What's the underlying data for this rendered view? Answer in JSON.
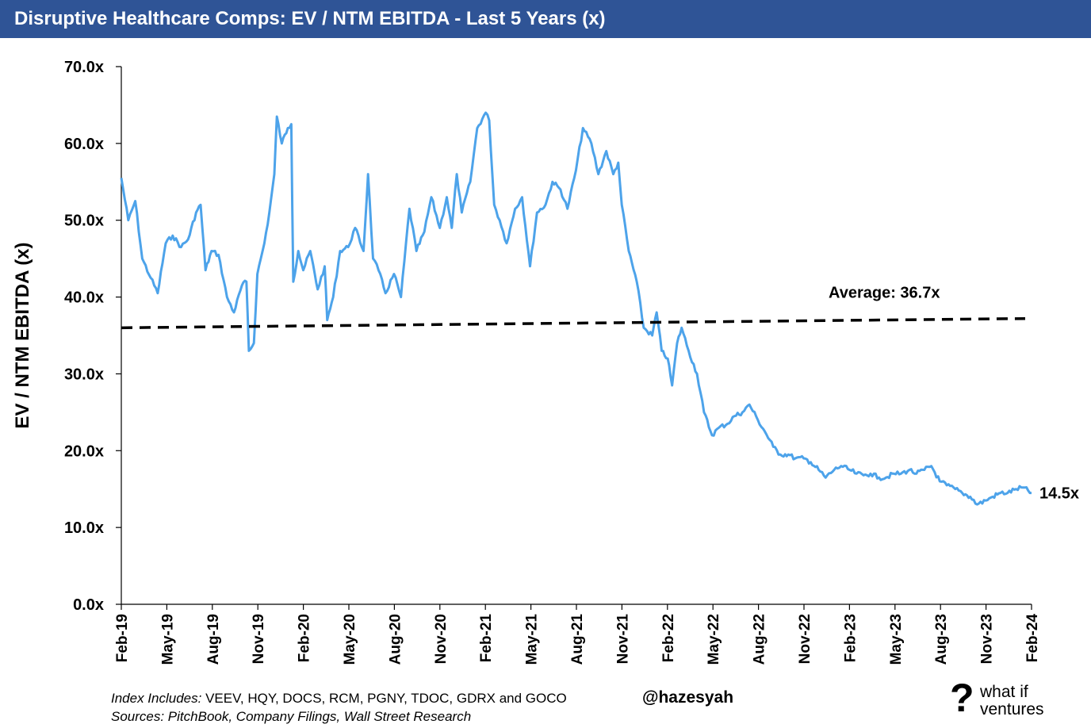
{
  "header": {
    "title": "Disruptive Healthcare Comps: EV / NTM EBITDA - Last 5 Years (x)"
  },
  "footer": {
    "index_prefix": "Index Includes:",
    "index_list": " VEEV, HQY, DOCS, RCM, PGNY, TDOC, GDRX and GOCO",
    "sources": "Sources: PitchBook, Company Filings, Wall Street Research",
    "handle": "@hazesyah",
    "logo_mark": "?",
    "logo_line1": "what if",
    "logo_line2": "ventures"
  },
  "colors": {
    "header_bg": "#2f5496",
    "series_line": "#4da3ea",
    "average_line": "#000000"
  },
  "chart_data": {
    "type": "line",
    "title": "Disruptive Healthcare Comps: EV / NTM EBITDA - Last 5 Years (x)",
    "ylabel": "EV / NTM EBITDA (x)",
    "xlabel": "",
    "ylim": [
      0,
      70
    ],
    "y_ticks": [
      0,
      10,
      20,
      30,
      40,
      50,
      60,
      70
    ],
    "y_tick_labels": [
      "0.0x",
      "10.0x",
      "20.0x",
      "30.0x",
      "40.0x",
      "50.0x",
      "60.0x",
      "70.0x"
    ],
    "x_range": [
      "2019-02-01",
      "2024-02-01"
    ],
    "x_tick_labels": [
      "Feb-19",
      "May-19",
      "Aug-19",
      "Nov-19",
      "Feb-20",
      "May-20",
      "Aug-20",
      "Nov-20",
      "Feb-21",
      "May-21",
      "Aug-21",
      "Nov-21",
      "Feb-22",
      "May-22",
      "Aug-22",
      "Nov-22",
      "Feb-23",
      "May-23",
      "Aug-23",
      "Nov-23",
      "Feb-24"
    ],
    "grid": false,
    "legend": "none",
    "series": [
      {
        "values": [
          [
            "2019-02-01",
            55.5
          ],
          [
            "2019-02-15",
            50.0
          ],
          [
            "2019-03-01",
            52.5
          ],
          [
            "2019-03-15",
            45.0
          ],
          [
            "2019-04-01",
            42.5
          ],
          [
            "2019-04-15",
            40.5
          ],
          [
            "2019-05-01",
            47.0
          ],
          [
            "2019-05-15",
            48.0
          ],
          [
            "2019-06-01",
            46.5
          ],
          [
            "2019-06-15",
            47.5
          ],
          [
            "2019-07-01",
            51.0
          ],
          [
            "2019-07-10",
            52.0
          ],
          [
            "2019-07-20",
            43.5
          ],
          [
            "2019-08-01",
            46.0
          ],
          [
            "2019-08-15",
            45.5
          ],
          [
            "2019-09-01",
            40.0
          ],
          [
            "2019-09-15",
            38.0
          ],
          [
            "2019-10-01",
            41.5
          ],
          [
            "2019-10-10",
            42.0
          ],
          [
            "2019-10-15",
            33.0
          ],
          [
            "2019-10-25",
            34.0
          ],
          [
            "2019-11-01",
            43.0
          ],
          [
            "2019-11-15",
            47.0
          ],
          [
            "2019-11-25",
            51.0
          ],
          [
            "2019-12-05",
            56.0
          ],
          [
            "2019-12-10",
            63.5
          ],
          [
            "2019-12-20",
            60.0
          ],
          [
            "2020-01-01",
            62.0
          ],
          [
            "2020-01-08",
            62.5
          ],
          [
            "2020-01-12",
            42.0
          ],
          [
            "2020-01-22",
            46.0
          ],
          [
            "2020-02-01",
            43.5
          ],
          [
            "2020-02-15",
            46.0
          ],
          [
            "2020-03-01",
            41.0
          ],
          [
            "2020-03-15",
            44.0
          ],
          [
            "2020-03-20",
            37.0
          ],
          [
            "2020-04-01",
            40.0
          ],
          [
            "2020-04-15",
            46.0
          ],
          [
            "2020-05-01",
            46.5
          ],
          [
            "2020-05-15",
            49.0
          ],
          [
            "2020-06-01",
            46.0
          ],
          [
            "2020-06-10",
            56.0
          ],
          [
            "2020-06-20",
            45.0
          ],
          [
            "2020-07-01",
            43.5
          ],
          [
            "2020-07-15",
            40.5
          ],
          [
            "2020-08-01",
            43.0
          ],
          [
            "2020-08-15",
            40.0
          ],
          [
            "2020-09-01",
            51.5
          ],
          [
            "2020-09-15",
            46.0
          ],
          [
            "2020-10-01",
            48.5
          ],
          [
            "2020-10-15",
            53.0
          ],
          [
            "2020-11-01",
            49.0
          ],
          [
            "2020-11-15",
            53.0
          ],
          [
            "2020-11-25",
            49.0
          ],
          [
            "2020-12-05",
            56.0
          ],
          [
            "2020-12-15",
            51.0
          ],
          [
            "2021-01-01",
            55.0
          ],
          [
            "2021-01-15",
            62.0
          ],
          [
            "2021-02-01",
            64.0
          ],
          [
            "2021-02-08",
            63.0
          ],
          [
            "2021-02-18",
            52.0
          ],
          [
            "2021-03-01",
            50.0
          ],
          [
            "2021-03-15",
            47.0
          ],
          [
            "2021-04-01",
            51.5
          ],
          [
            "2021-04-15",
            53.0
          ],
          [
            "2021-05-01",
            44.0
          ],
          [
            "2021-05-15",
            51.0
          ],
          [
            "2021-06-01",
            52.0
          ],
          [
            "2021-06-15",
            55.0
          ],
          [
            "2021-07-01",
            54.0
          ],
          [
            "2021-07-15",
            51.5
          ],
          [
            "2021-08-01",
            56.5
          ],
          [
            "2021-08-15",
            62.0
          ],
          [
            "2021-09-01",
            60.0
          ],
          [
            "2021-09-15",
            56.0
          ],
          [
            "2021-10-01",
            59.0
          ],
          [
            "2021-10-15",
            56.0
          ],
          [
            "2021-10-25",
            57.5
          ],
          [
            "2021-11-01",
            52.0
          ],
          [
            "2021-11-15",
            46.0
          ],
          [
            "2021-12-01",
            42.0
          ],
          [
            "2021-12-15",
            36.0
          ],
          [
            "2022-01-01",
            35.0
          ],
          [
            "2022-01-10",
            38.0
          ],
          [
            "2022-01-20",
            33.0
          ],
          [
            "2022-02-01",
            32.0
          ],
          [
            "2022-02-10",
            28.5
          ],
          [
            "2022-02-20",
            34.0
          ],
          [
            "2022-03-01",
            36.0
          ],
          [
            "2022-03-15",
            33.0
          ],
          [
            "2022-04-01",
            30.0
          ],
          [
            "2022-04-15",
            25.0
          ],
          [
            "2022-05-01",
            22.0
          ],
          [
            "2022-05-15",
            23.0
          ],
          [
            "2022-06-01",
            23.5
          ],
          [
            "2022-06-15",
            24.5
          ],
          [
            "2022-07-01",
            25.0
          ],
          [
            "2022-07-15",
            26.0
          ],
          [
            "2022-08-01",
            24.0
          ],
          [
            "2022-08-15",
            22.5
          ],
          [
            "2022-09-01",
            20.5
          ],
          [
            "2022-09-15",
            19.5
          ],
          [
            "2022-10-01",
            19.5
          ],
          [
            "2022-10-15",
            19.0
          ],
          [
            "2022-11-01",
            19.0
          ],
          [
            "2022-11-15",
            18.5
          ],
          [
            "2022-12-01",
            17.5
          ],
          [
            "2022-12-15",
            16.5
          ],
          [
            "2023-01-01",
            17.5
          ],
          [
            "2023-01-15",
            18.0
          ],
          [
            "2023-02-01",
            17.5
          ],
          [
            "2023-02-15",
            17.0
          ],
          [
            "2023-03-01",
            16.8
          ],
          [
            "2023-03-15",
            17.0
          ],
          [
            "2023-04-01",
            16.5
          ],
          [
            "2023-04-15",
            16.5
          ],
          [
            "2023-05-01",
            17.0
          ],
          [
            "2023-05-15",
            17.0
          ],
          [
            "2023-06-01",
            17.5
          ],
          [
            "2023-06-15",
            17.0
          ],
          [
            "2023-07-01",
            17.5
          ],
          [
            "2023-07-15",
            18.0
          ],
          [
            "2023-08-01",
            16.0
          ],
          [
            "2023-08-15",
            15.5
          ],
          [
            "2023-09-01",
            15.0
          ],
          [
            "2023-09-15",
            14.5
          ],
          [
            "2023-10-01",
            14.0
          ],
          [
            "2023-10-15",
            13.0
          ],
          [
            "2023-11-01",
            13.5
          ],
          [
            "2023-11-15",
            14.0
          ],
          [
            "2023-12-01",
            14.5
          ],
          [
            "2023-12-15",
            14.5
          ],
          [
            "2024-01-01",
            15.0
          ],
          [
            "2024-01-15",
            15.2
          ],
          [
            "2024-02-01",
            14.5
          ]
        ]
      }
    ],
    "average": {
      "label": "Average: 36.7x",
      "start_value": 36.0,
      "end_value": 37.2
    },
    "end_label": "14.5x"
  }
}
